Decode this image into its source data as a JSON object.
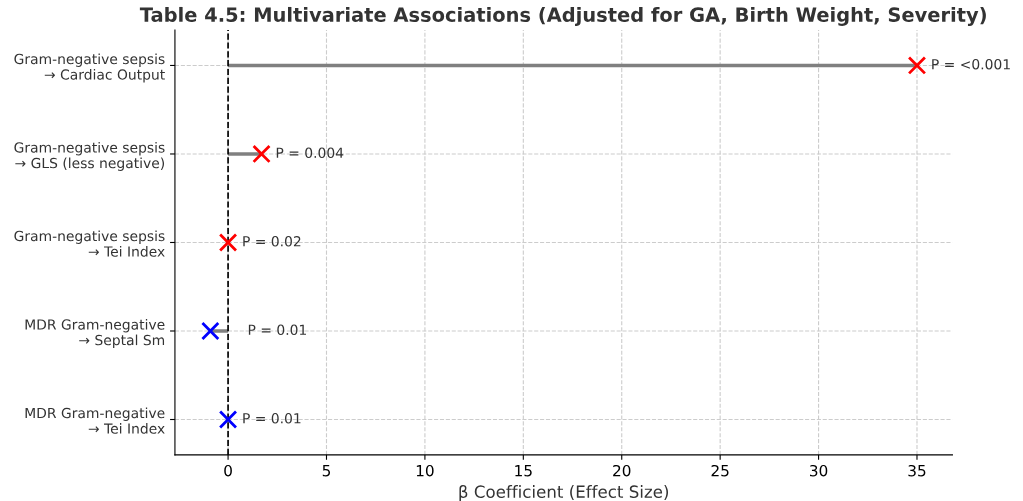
{
  "chart_data": {
    "type": "lollipop",
    "orientation": "horizontal",
    "title": "Table 4.5: Multivariate Associations (Adjusted for GA, Birth Weight, Severity)",
    "xlabel": "β Coefficient (Effect Size)",
    "categories": [
      "Gram-negative sepsis\n→ Cardiac Output",
      "Gram-negative sepsis\n→ GLS (less negative)",
      "Gram-negative sepsis\n→ Tei Index",
      "MDR Gram-negative\n→ Septal Sm",
      "MDR Gram-negative\n→ Tei Index"
    ],
    "values": [
      35,
      1.7,
      0,
      -0.9,
      0
    ],
    "colors": [
      "#ff0000",
      "#ff0000",
      "#ff0000",
      "#0000ff",
      "#0000ff"
    ],
    "annotations": [
      {
        "text": "P = <0.001",
        "x": 35,
        "y": "Gram-negative sepsis\n→ Cardiac Output"
      },
      {
        "text": "P = 0.004",
        "x": 1.7,
        "y": "Gram-negative sepsis\n→ GLS (less negative)"
      },
      {
        "text": "P = 0.02",
        "x": 0,
        "y": "Gram-negative sepsis\n→ Tei Index"
      },
      {
        "text": "P = 0.01",
        "x": -0.9,
        "y": "MDR Gram-negative\n→ Septal Sm"
      },
      {
        "text": "P = 0.01",
        "x": 0,
        "y": "MDR Gram-negative\n→ Tei Index"
      }
    ],
    "xlim": [
      -2.7,
      36.8
    ],
    "xticks": [
      0,
      5,
      10,
      15,
      20,
      25,
      30,
      35
    ],
    "ref_lines": [
      {
        "axis": "x",
        "value": 0,
        "color": "#000000",
        "line_style": "dashed"
      }
    ],
    "grid": true,
    "marker": "cross"
  }
}
